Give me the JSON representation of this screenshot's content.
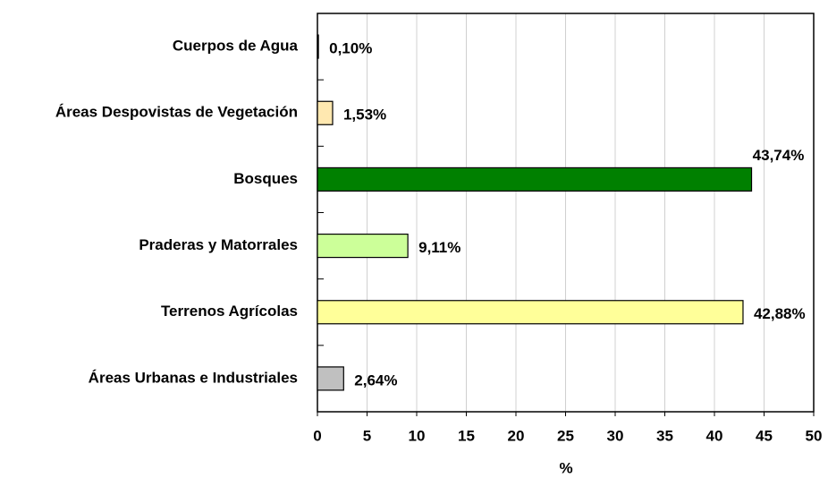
{
  "chart_data": {
    "type": "barh",
    "categories": [
      "Cuerpos de Agua",
      "Áreas Despovistas de Vegetación",
      "Bosques",
      "Praderas y Matorrales",
      "Terrenos Agrícolas",
      "Áreas Urbanas e Industriales"
    ],
    "values": [
      0.1,
      1.53,
      43.74,
      9.11,
      42.88,
      2.64
    ],
    "value_labels": [
      "0,10%",
      "1,53%",
      "43,74%",
      "9,11%",
      "42,88%",
      "2,64%"
    ],
    "colors": [
      "#1a1a4a",
      "#ffe8b0",
      "#008000",
      "#ccff99",
      "#ffff99",
      "#c0c0c0"
    ],
    "xlabel": "%",
    "xlim": [
      0,
      50
    ],
    "xticks": [
      0,
      5,
      10,
      15,
      20,
      25,
      30,
      35,
      40,
      45,
      50
    ],
    "grid": true
  }
}
